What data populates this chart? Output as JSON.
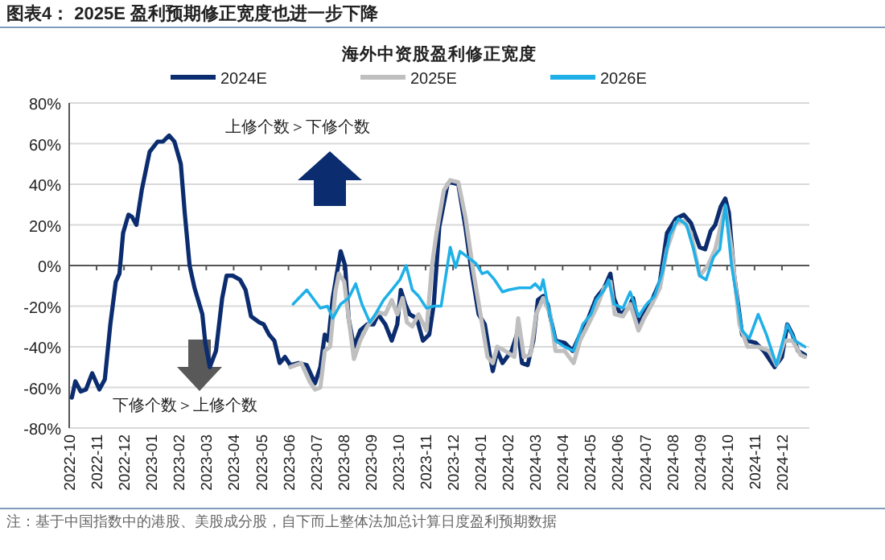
{
  "chart_data": {
    "type": "line",
    "title": "图表4：  2025E 盈利预期修正宽度也进一步下降",
    "subtitle": "海外中资股盈利修正宽度",
    "xlim": [
      "2022-10",
      "2025-01"
    ],
    "xticks": [
      "2022-10",
      "2022-11",
      "2022-12",
      "2023-01",
      "2023-02",
      "2023-03",
      "2023-04",
      "2023-05",
      "2023-06",
      "2023-07",
      "2023-08",
      "2023-09",
      "2023-10",
      "2023-11",
      "2023-12",
      "2024-01",
      "2024-02",
      "2024-03",
      "2024-04",
      "2024-05",
      "2024-06",
      "2024-07",
      "2024-08",
      "2024-09",
      "2024-10",
      "2024-11",
      "2024-12"
    ],
    "ylim": [
      -80,
      80
    ],
    "yticks": [
      {
        "value": -80,
        "label": "-80%"
      },
      {
        "value": -60,
        "label": "-60%"
      },
      {
        "value": -40,
        "label": "-40%"
      },
      {
        "value": -20,
        "label": "-20%"
      },
      {
        "value": 0,
        "label": "0%"
      },
      {
        "value": 20,
        "label": "20%"
      },
      {
        "value": 40,
        "label": "40%"
      },
      {
        "value": 60,
        "label": "60%"
      },
      {
        "value": 80,
        "label": "80%"
      }
    ],
    "grid": "y",
    "legend": "top",
    "marker": "none",
    "line_style": "solid",
    "annotations": [
      "上修个数＞下修个数",
      "下修个数＞上修个数",
      "注：基于中国指数中的港股、美股成分股，自下而上整体法加总计算日度盈利预期数据"
    ],
    "series": [
      {
        "name": "2024E",
        "color": "#0b2c6e",
        "x": [
          "2022-10-04",
          "2022-10-08",
          "2022-10-14",
          "2022-10-20",
          "2022-10-27",
          "2022-11-04",
          "2022-11-10",
          "2022-11-16",
          "2022-11-22",
          "2022-11-26",
          "2022-11-30",
          "2022-12-06",
          "2022-12-10",
          "2022-12-15",
          "2022-12-21",
          "2022-12-30",
          "2023-01-08",
          "2023-01-14",
          "2023-01-21",
          "2023-01-27",
          "2023-02-03",
          "2023-02-07",
          "2023-02-12",
          "2023-02-17",
          "2023-02-25",
          "2023-02-28",
          "2023-03-05",
          "2023-03-12",
          "2023-03-19",
          "2023-03-24",
          "2023-03-31",
          "2023-04-08",
          "2023-04-14",
          "2023-04-20",
          "2023-04-29",
          "2023-05-04",
          "2023-05-10",
          "2023-05-16",
          "2023-05-22",
          "2023-05-28",
          "2023-06-03",
          "2023-06-12",
          "2023-06-21",
          "2023-06-30",
          "2023-07-06",
          "2023-07-11",
          "2023-07-15",
          "2023-07-20",
          "2023-07-25",
          "2023-07-29",
          "2023-08-03",
          "2023-08-07",
          "2023-08-13",
          "2023-08-20",
          "2023-08-28",
          "2023-09-04",
          "2023-09-09",
          "2023-09-17",
          "2023-09-24",
          "2023-09-30",
          "2023-10-04",
          "2023-10-09",
          "2023-10-14",
          "2023-10-22",
          "2023-10-29",
          "2023-11-05",
          "2023-11-10",
          "2023-11-16",
          "2023-11-25",
          "2023-11-28",
          "2023-12-07",
          "2023-12-15",
          "2023-12-21",
          "2023-12-30",
          "2024-01-06",
          "2024-01-12",
          "2024-01-15",
          "2024-01-20",
          "2024-01-26",
          "2024-02-05",
          "2024-02-12",
          "2024-02-16",
          "2024-02-22",
          "2024-02-28",
          "2024-03-04",
          "2024-03-10",
          "2024-03-15",
          "2024-03-24",
          "2024-04-03",
          "2024-04-12",
          "2024-04-20",
          "2024-04-29",
          "2024-05-08",
          "2024-05-17",
          "2024-05-24",
          "2024-05-28",
          "2024-06-04",
          "2024-06-13",
          "2024-06-18",
          "2024-06-24",
          "2024-06-30",
          "2024-07-09",
          "2024-07-18",
          "2024-07-26",
          "2024-08-05",
          "2024-08-14",
          "2024-08-22",
          "2024-09-01",
          "2024-09-07",
          "2024-09-13",
          "2024-09-18",
          "2024-09-24",
          "2024-09-29",
          "2024-10-03",
          "2024-10-09",
          "2024-10-18",
          "2024-10-24",
          "2024-11-02",
          "2024-11-11",
          "2024-11-23",
          "2024-12-01",
          "2024-12-07",
          "2024-12-13",
          "2024-12-19",
          "2024-12-27"
        ],
        "values": [
          -65,
          -57,
          -62,
          -61,
          -53,
          -61,
          -56,
          -29,
          -8,
          -4,
          16,
          25,
          24,
          20,
          37,
          56,
          61,
          61,
          64,
          61,
          50,
          26,
          0,
          -11,
          -24,
          -38,
          -50,
          -42,
          -16,
          -5,
          -5,
          -7,
          -12,
          -25,
          -28,
          -29,
          -34,
          -37,
          -48,
          -45,
          -49,
          -48,
          -49,
          -58,
          -50,
          -34,
          -37,
          -16,
          -3,
          7,
          0,
          -26,
          -40,
          -32,
          -29,
          -29,
          -24,
          -29,
          -37,
          -29,
          -12,
          -19,
          -24,
          -26,
          -37,
          -34,
          -19,
          19,
          40,
          41,
          40,
          19,
          0,
          -24,
          -29,
          -45,
          -52,
          -42,
          -48,
          -42,
          -32,
          -48,
          -49,
          -37,
          -17,
          -15,
          -19,
          -37,
          -38,
          -42,
          -34,
          -26,
          -16,
          -11,
          -4,
          -16,
          -24,
          -21,
          -16,
          -29,
          -24,
          -17,
          -8,
          16,
          23,
          25,
          21,
          9,
          8,
          17,
          20,
          29,
          33,
          26,
          -5,
          -34,
          -37,
          -38,
          -42,
          -50,
          -45,
          -29,
          -34,
          -42,
          -44
        ]
      },
      {
        "name": "2025E",
        "color": "#bfbfbf",
        "x": [
          "2023-06-03",
          "2023-06-15",
          "2023-06-24",
          "2023-06-30",
          "2023-07-06",
          "2023-07-11",
          "2023-07-17",
          "2023-07-23",
          "2023-07-27",
          "2023-08-02",
          "2023-08-07",
          "2023-08-13",
          "2023-08-20",
          "2023-08-28",
          "2023-09-04",
          "2023-09-09",
          "2023-09-17",
          "2023-09-24",
          "2023-09-30",
          "2023-10-06",
          "2023-10-11",
          "2023-10-17",
          "2023-10-24",
          "2023-11-02",
          "2023-11-08",
          "2023-11-13",
          "2023-11-21",
          "2023-11-28",
          "2023-12-07",
          "2023-12-15",
          "2023-12-24",
          "2024-01-03",
          "2024-01-09",
          "2024-01-15",
          "2024-01-20",
          "2024-01-29",
          "2024-02-08",
          "2024-02-12",
          "2024-02-18",
          "2024-02-25",
          "2024-03-02",
          "2024-03-10",
          "2024-03-18",
          "2024-03-24",
          "2024-04-03",
          "2024-04-13",
          "2024-04-20",
          "2024-04-29",
          "2024-05-08",
          "2024-05-17",
          "2024-05-24",
          "2024-05-29",
          "2024-06-07",
          "2024-06-15",
          "2024-06-24",
          "2024-06-30",
          "2024-07-09",
          "2024-07-18",
          "2024-07-26",
          "2024-08-05",
          "2024-08-14",
          "2024-08-22",
          "2024-09-01",
          "2024-09-10",
          "2024-09-18",
          "2024-09-29",
          "2024-10-06",
          "2024-10-15",
          "2024-10-24",
          "2024-11-05",
          "2024-11-17",
          "2024-11-25",
          "2024-12-04",
          "2024-12-13",
          "2024-12-22",
          "2024-12-27"
        ],
        "values": [
          -50,
          -48,
          -57,
          -61,
          -60,
          -42,
          -40,
          -13,
          -4,
          -8,
          -26,
          -46,
          -37,
          -30,
          -26,
          -23,
          -24,
          -17,
          -24,
          -16,
          -28,
          -30,
          -24,
          -32,
          0,
          16,
          37,
          42,
          41,
          24,
          -3,
          -29,
          -45,
          -48,
          -40,
          -42,
          -45,
          -26,
          -45,
          -44,
          -24,
          -16,
          -24,
          -42,
          -42,
          -48,
          -37,
          -29,
          -21,
          -11,
          -8,
          -24,
          -25,
          -19,
          -32,
          -26,
          -19,
          -11,
          8,
          21,
          22,
          16,
          -5,
          0,
          8,
          29,
          8,
          -29,
          -40,
          -40,
          -42,
          -49,
          -37,
          -37,
          -44,
          -45
        ]
      },
      {
        "name": "2026E",
        "color": "#1fb0e8",
        "x": [
          "2023-06-06",
          "2023-06-21",
          "2023-07-06",
          "2023-07-14",
          "2023-07-20",
          "2023-07-29",
          "2023-08-07",
          "2023-08-15",
          "2023-08-22",
          "2023-08-31",
          "2023-09-06",
          "2023-09-15",
          "2023-09-24",
          "2023-10-03",
          "2023-10-10",
          "2023-10-17",
          "2023-10-24",
          "2023-11-02",
          "2023-11-10",
          "2023-11-18",
          "2023-11-28",
          "2023-12-04",
          "2023-12-09",
          "2023-12-18",
          "2023-12-27",
          "2024-01-03",
          "2024-01-09",
          "2024-01-17",
          "2024-01-26",
          "2024-02-02",
          "2024-02-13",
          "2024-02-25",
          "2024-03-01",
          "2024-03-07",
          "2024-03-10",
          "2024-03-15",
          "2024-03-24",
          "2024-04-03",
          "2024-04-13",
          "2024-04-23",
          "2024-05-02",
          "2024-05-08",
          "2024-05-17",
          "2024-05-22",
          "2024-05-28",
          "2024-06-07",
          "2024-06-15",
          "2024-06-24",
          "2024-07-03",
          "2024-07-12",
          "2024-07-21",
          "2024-07-29",
          "2024-08-08",
          "2024-08-17",
          "2024-08-25",
          "2024-09-01",
          "2024-09-08",
          "2024-09-16",
          "2024-09-23",
          "2024-09-29",
          "2024-10-06",
          "2024-10-18",
          "2024-10-26",
          "2024-11-05",
          "2024-11-14",
          "2024-11-25",
          "2024-12-07",
          "2024-12-16",
          "2024-12-27"
        ],
        "values": [
          -19,
          -12,
          -21,
          -20,
          -26,
          -19,
          -16,
          -9,
          -19,
          -28,
          -24,
          -17,
          -12,
          -7,
          0,
          -12,
          -15,
          -21,
          -20,
          -20,
          9,
          -1,
          7,
          4,
          1,
          -4,
          -3,
          -7,
          -13,
          -12,
          -11,
          -11,
          -9,
          -12,
          -7,
          -19,
          -37,
          -40,
          -42,
          -29,
          -24,
          -17,
          -12,
          -7,
          -19,
          -21,
          -13,
          -25,
          -19,
          -15,
          -3,
          15,
          23,
          20,
          8,
          -5,
          -7,
          4,
          8,
          30,
          0,
          -32,
          -36,
          -24,
          -34,
          -49,
          -29,
          -37,
          -40
        ]
      }
    ]
  }
}
